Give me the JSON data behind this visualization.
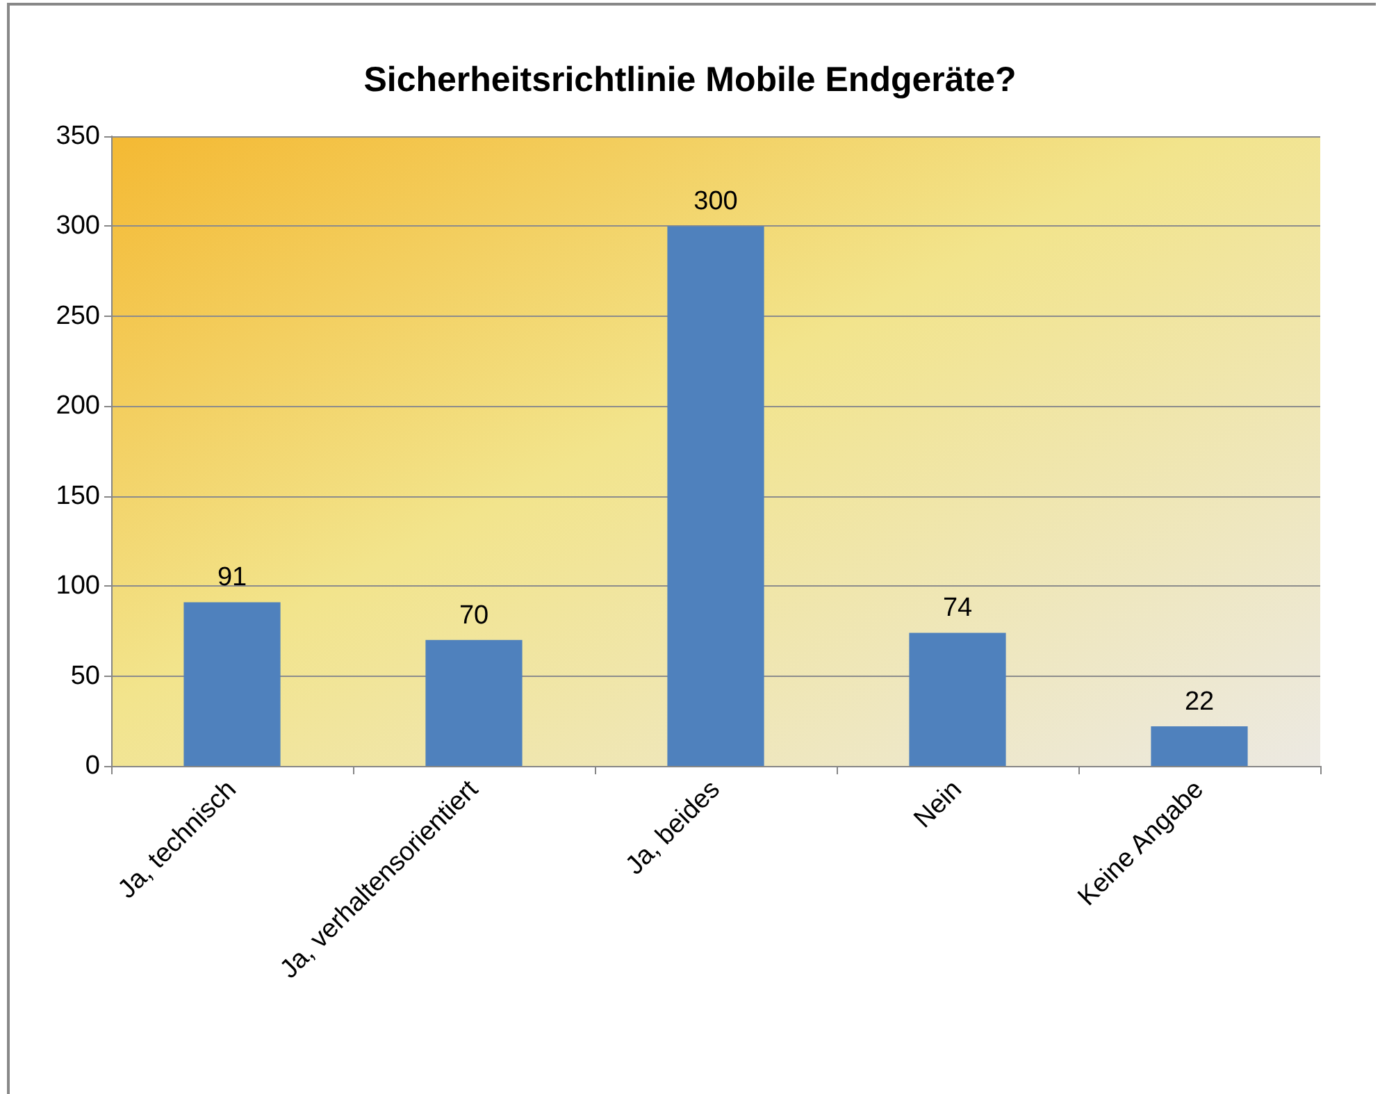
{
  "chart_data": {
    "type": "bar",
    "title": "Sicherheitsrichtlinie Mobile Endgeräte?",
    "categories": [
      "Ja, technisch",
      "Ja, verhaltensorientiert",
      "Ja, beides",
      "Nein",
      "Keine Angabe"
    ],
    "values": [
      91,
      70,
      300,
      74,
      22
    ],
    "color": "#4f81bd",
    "ylim": [
      0,
      350
    ],
    "yticks": [
      0,
      50,
      100,
      150,
      200,
      250,
      300,
      350
    ],
    "grid": "y",
    "data_labels": true
  }
}
